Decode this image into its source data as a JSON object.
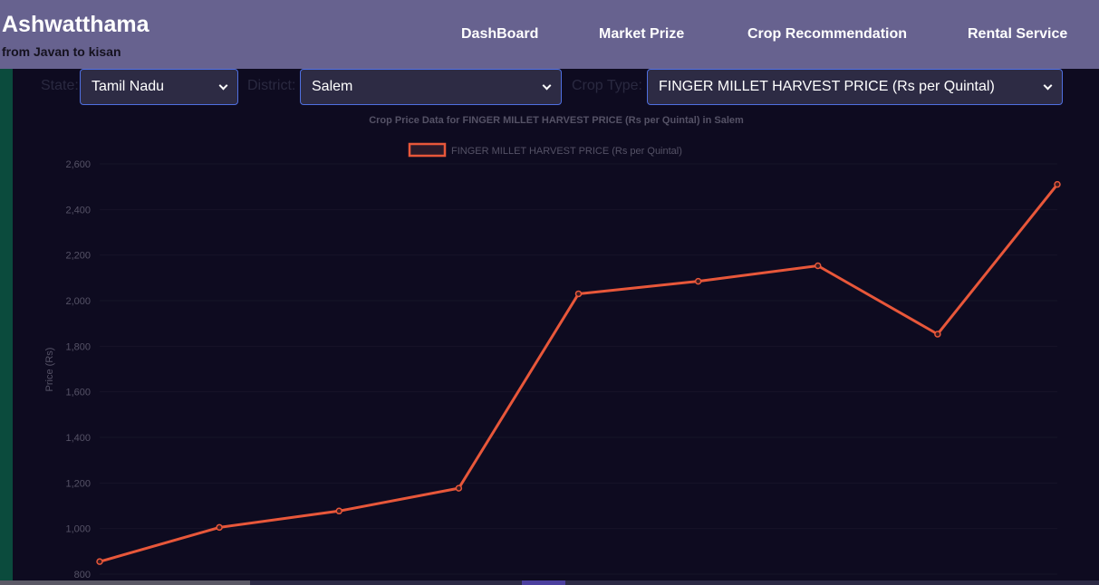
{
  "brand": {
    "title": "Ashwatthama",
    "subtitle": "from Javan to kisan"
  },
  "nav": {
    "items": [
      "DashBoard",
      "Market Prize",
      "Crop Recommendation",
      "Rental Service"
    ]
  },
  "filters": {
    "state_label": "State:",
    "state_value": "Tamil Nadu",
    "district_label": "District:",
    "district_value": "Salem",
    "crop_label": "Crop Type:",
    "crop_value": "FINGER MILLET HARVEST PRICE (Rs per Quintal)"
  },
  "colors": {
    "line": "#e8573a",
    "navbar": "#67628f",
    "background": "#0e0b20"
  },
  "chart_data": {
    "type": "line",
    "title": "Crop Price Data for FINGER MILLET HARVEST PRICE (Rs per Quintal) in Salem",
    "ylabel": "Price (Rs)",
    "xlabel": "",
    "ylim": [
      800,
      2600
    ],
    "yticks": [
      "800",
      "1,000",
      "1,200",
      "1,400",
      "1,600",
      "1,800",
      "2,000",
      "2,200",
      "2,400",
      "2,600"
    ],
    "legend": "top",
    "series": [
      {
        "name": "FINGER MILLET HARVEST PRICE (Rs per Quintal)",
        "values": [
          855,
          1005,
          1077,
          1177,
          2030,
          2085,
          2153,
          1853,
          2510
        ]
      }
    ]
  }
}
